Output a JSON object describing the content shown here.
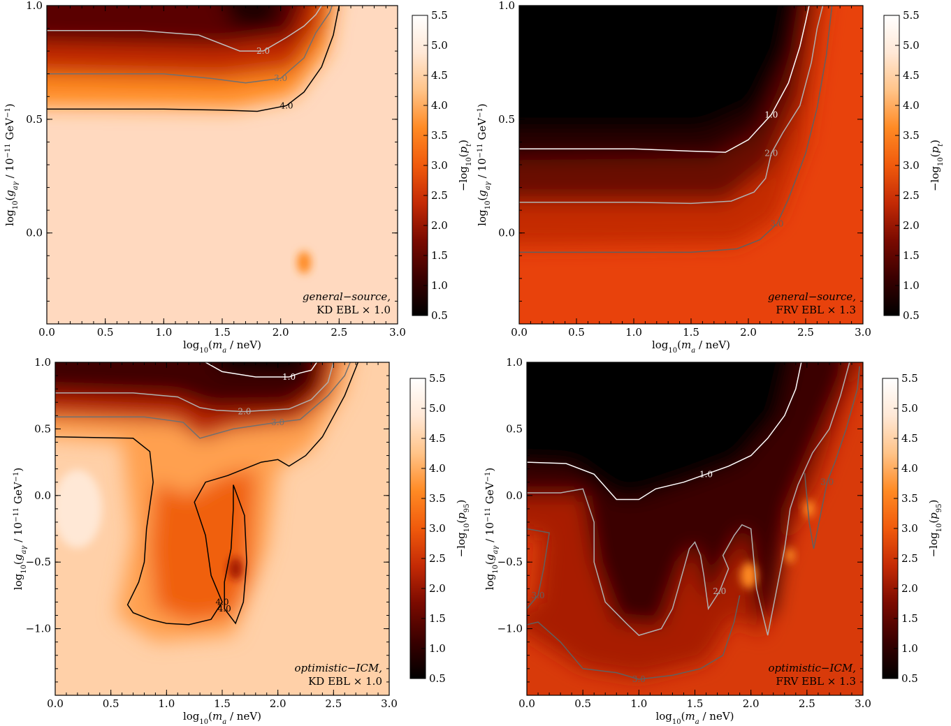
{
  "colormap": {
    "name": "gist_heat",
    "stops": [
      "#000000",
      "#3a0000",
      "#7a0a00",
      "#c42a05",
      "#f05a0c",
      "#ff8a24",
      "#ffc388",
      "#ffe8d6",
      "#ffffff"
    ]
  },
  "chart_data": [
    {
      "type": "heatmap",
      "panel": "top-left",
      "xlabel": "log10(m_a / neV)",
      "ylabel": "log10(g_aγ / 10^-11 GeV^-1)",
      "xlim": [
        0.0,
        3.0
      ],
      "ylim": [
        -0.4,
        1.0
      ],
      "xticks": [
        "0.0",
        "0.5",
        "1.0",
        "1.5",
        "2.0",
        "2.5",
        "3.0"
      ],
      "yticks": [
        "0.0",
        "0.5",
        "1.0"
      ],
      "annotation": [
        "general−source,",
        "KD EBL  × 1.0"
      ],
      "colorbar": {
        "label": "−log10(p_t)",
        "range": [
          0.5,
          5.5
        ],
        "ticks": [
          "0.5",
          "1.0",
          "1.5",
          "2.0",
          "2.5",
          "3.0",
          "3.5",
          "4.0",
          "4.5",
          "5.0",
          "5.5"
        ]
      },
      "contours": [
        {
          "level": "2.0",
          "color": "#c0c0c0",
          "points": [
            [
              0,
              0.89
            ],
            [
              0.8,
              0.89
            ],
            [
              1.3,
              0.87
            ],
            [
              1.65,
              0.8
            ],
            [
              1.85,
              0.8
            ],
            [
              2.05,
              0.86
            ],
            [
              2.2,
              0.91
            ],
            [
              2.3,
              0.96
            ],
            [
              2.35,
              1.0
            ]
          ]
        },
        {
          "level": "3.0",
          "color": "#707070",
          "points": [
            [
              0,
              0.7
            ],
            [
              1.0,
              0.7
            ],
            [
              1.4,
              0.68
            ],
            [
              1.7,
              0.66
            ],
            [
              2.0,
              0.68
            ],
            [
              2.2,
              0.77
            ],
            [
              2.3,
              0.88
            ],
            [
              2.42,
              0.97
            ],
            [
              2.44,
              1.0
            ]
          ]
        },
        {
          "level": "4.0",
          "color": "#000000",
          "points": [
            [
              0,
              0.545
            ],
            [
              1.0,
              0.545
            ],
            [
              1.5,
              0.54
            ],
            [
              1.8,
              0.535
            ],
            [
              2.05,
              0.56
            ],
            [
              2.2,
              0.62
            ],
            [
              2.35,
              0.73
            ],
            [
              2.45,
              0.87
            ],
            [
              2.5,
              1.0
            ]
          ]
        }
      ]
    },
    {
      "type": "heatmap",
      "panel": "top-right",
      "xlabel": "log10(m_a / neV)",
      "ylabel": "log10(g_aγ / 10^-11 GeV^-1)",
      "xlim": [
        0.0,
        3.0
      ],
      "ylim": [
        -0.4,
        1.0
      ],
      "xticks": [
        "0.0",
        "0.5",
        "1.0",
        "1.5",
        "2.0",
        "2.5",
        "3.0"
      ],
      "yticks": [
        "0.0",
        "0.5",
        "1.0"
      ],
      "annotation": [
        "general−source,",
        "FRV EBL  × 1.3"
      ],
      "colorbar": {
        "label": "−log10(p_t)",
        "range": [
          0.5,
          5.5
        ],
        "ticks": [
          "0.5",
          "1.0",
          "1.5",
          "2.0",
          "2.5",
          "3.0",
          "3.5",
          "4.0",
          "4.5",
          "5.0",
          "5.5"
        ]
      },
      "contours": [
        {
          "level": "1.0",
          "color": "#ffffff",
          "points": [
            [
              0,
              0.37
            ],
            [
              1.0,
              0.37
            ],
            [
              1.5,
              0.36
            ],
            [
              1.8,
              0.355
            ],
            [
              2.0,
              0.41
            ],
            [
              2.2,
              0.52
            ],
            [
              2.35,
              0.66
            ],
            [
              2.45,
              0.82
            ],
            [
              2.5,
              0.93
            ],
            [
              2.53,
              1.0
            ]
          ]
        },
        {
          "level": "2.0",
          "color": "#b0b0b0",
          "points": [
            [
              0,
              0.135
            ],
            [
              1.0,
              0.135
            ],
            [
              1.5,
              0.13
            ],
            [
              1.85,
              0.14
            ],
            [
              2.05,
              0.18
            ],
            [
              2.15,
              0.24
            ],
            [
              2.2,
              0.35
            ],
            [
              2.3,
              0.44
            ],
            [
              2.45,
              0.56
            ],
            [
              2.55,
              0.75
            ],
            [
              2.6,
              0.9
            ],
            [
              2.65,
              1.0
            ]
          ]
        },
        {
          "level": "3.0",
          "color": "#606060",
          "points": [
            [
              0,
              -0.085
            ],
            [
              1.0,
              -0.085
            ],
            [
              1.5,
              -0.085
            ],
            [
              1.9,
              -0.07
            ],
            [
              2.1,
              -0.03
            ],
            [
              2.25,
              0.04
            ],
            [
              2.35,
              0.15
            ],
            [
              2.5,
              0.35
            ],
            [
              2.6,
              0.55
            ],
            [
              2.68,
              0.78
            ],
            [
              2.73,
              1.0
            ]
          ]
        }
      ]
    },
    {
      "type": "heatmap",
      "panel": "bottom-left",
      "xlabel": "log10(m_a / neV)",
      "ylabel": "log10(g_aγ / 10^-11 GeV^-1)",
      "xlim": [
        0.0,
        3.0
      ],
      "ylim": [
        -1.5,
        1.0
      ],
      "xticks": [
        "0.0",
        "0.5",
        "1.0",
        "1.5",
        "2.0",
        "2.5",
        "3.0"
      ],
      "yticks": [
        "−1.0",
        "−0.5",
        "0.0",
        "0.5",
        "1.0"
      ],
      "annotation": [
        "optimistic−ICM,",
        "KD EBL  × 1.0"
      ],
      "colorbar": {
        "label": "−log10(p_95)",
        "range": [
          0.5,
          5.5
        ],
        "ticks": [
          "0.5",
          "1.0",
          "1.5",
          "2.0",
          "2.5",
          "3.0",
          "3.5",
          "4.0",
          "4.5",
          "5.0",
          "5.5"
        ]
      },
      "contours": [
        {
          "level": "1.0",
          "color": "#ffffff",
          "points": [
            [
              1.35,
              1.0
            ],
            [
              1.5,
              0.93
            ],
            [
              1.8,
              0.89
            ],
            [
              2.1,
              0.89
            ],
            [
              2.2,
              0.92
            ],
            [
              2.3,
              0.94
            ],
            [
              2.35,
              1.0
            ]
          ]
        },
        {
          "level": "2.0",
          "color": "#b0b0b0",
          "points": [
            [
              0,
              0.77
            ],
            [
              0.7,
              0.77
            ],
            [
              1.1,
              0.74
            ],
            [
              1.3,
              0.66
            ],
            [
              1.45,
              0.64
            ],
            [
              1.7,
              0.63
            ],
            [
              2.1,
              0.65
            ],
            [
              2.3,
              0.72
            ],
            [
              2.45,
              0.85
            ],
            [
              2.5,
              1.0
            ]
          ]
        },
        {
          "level": "3.0",
          "color": "#707070",
          "points": [
            [
              0,
              0.59
            ],
            [
              0.8,
              0.59
            ],
            [
              1.15,
              0.55
            ],
            [
              1.3,
              0.43
            ],
            [
              1.6,
              0.5
            ],
            [
              2.0,
              0.55
            ],
            [
              2.2,
              0.57
            ],
            [
              2.45,
              0.75
            ],
            [
              2.6,
              0.9
            ],
            [
              2.65,
              1.0
            ]
          ]
        },
        {
          "level": "4.0",
          "color": "#000000",
          "points": [
            [
              0,
              0.44
            ],
            [
              0.7,
              0.43
            ],
            [
              0.85,
              0.33
            ],
            [
              0.88,
              0.1
            ],
            [
              0.82,
              -0.25
            ],
            [
              0.8,
              -0.5
            ],
            [
              0.75,
              -0.65
            ],
            [
              0.65,
              -0.82
            ],
            [
              0.7,
              -0.88
            ],
            [
              0.85,
              -0.93
            ],
            [
              1.0,
              -0.96
            ],
            [
              1.2,
              -0.97
            ],
            [
              1.4,
              -0.93
            ],
            [
              1.5,
              -0.8
            ],
            [
              1.4,
              -0.6
            ],
            [
              1.35,
              -0.3
            ],
            [
              1.25,
              -0.05
            ],
            [
              1.35,
              0.1
            ],
            [
              1.55,
              0.15
            ],
            [
              1.85,
              0.25
            ],
            [
              2.0,
              0.27
            ],
            [
              2.1,
              0.22
            ],
            [
              2.25,
              0.3
            ],
            [
              2.4,
              0.44
            ],
            [
              2.6,
              0.75
            ],
            [
              2.72,
              1.0
            ]
          ]
        },
        {
          "level": "4.0",
          "color": "#000000",
          "points": [
            [
              1.6,
              0.08
            ],
            [
              1.7,
              -0.15
            ],
            [
              1.72,
              -0.5
            ],
            [
              1.69,
              -0.8
            ],
            [
              1.62,
              -0.96
            ],
            [
              1.52,
              -0.85
            ],
            [
              1.52,
              -0.65
            ],
            [
              1.58,
              -0.4
            ],
            [
              1.6,
              -0.1
            ],
            [
              1.6,
              0.08
            ]
          ]
        }
      ]
    },
    {
      "type": "heatmap",
      "panel": "bottom-right",
      "xlabel": "log10(m_a / neV)",
      "ylabel": "log10(g_aγ / 10^-11 GeV^-1)",
      "xlim": [
        0.0,
        3.0
      ],
      "ylim": [
        -1.5,
        1.0
      ],
      "xticks": [
        "0.0",
        "0.5",
        "1.0",
        "1.5",
        "2.0",
        "2.5",
        "3.0"
      ],
      "yticks": [
        "−1.0",
        "−0.5",
        "0.0",
        "0.5",
        "1.0"
      ],
      "annotation": [
        "optimistic−ICM,",
        "FRV EBL  × 1.3"
      ],
      "colorbar": {
        "label": "−log10(p_95)",
        "range": [
          0.5,
          5.5
        ],
        "ticks": [
          "0.5",
          "1.0",
          "1.5",
          "2.0",
          "2.5",
          "3.0",
          "3.5",
          "4.0",
          "4.5",
          "5.0",
          "5.5"
        ]
      },
      "contours": [
        {
          "level": "1.0",
          "color": "#ffffff",
          "points": [
            [
              0,
              0.25
            ],
            [
              0.35,
              0.24
            ],
            [
              0.6,
              0.16
            ],
            [
              0.8,
              -0.03
            ],
            [
              1.0,
              -0.03
            ],
            [
              1.15,
              0.05
            ],
            [
              1.4,
              0.1
            ],
            [
              1.6,
              0.16
            ],
            [
              1.8,
              0.22
            ],
            [
              2.0,
              0.3
            ],
            [
              2.15,
              0.43
            ],
            [
              2.3,
              0.6
            ],
            [
              2.4,
              0.8
            ],
            [
              2.45,
              1.0
            ]
          ]
        },
        {
          "level": "2.0",
          "color": "#b0b0b0",
          "points": [
            [
              0,
              0.02
            ],
            [
              0.3,
              0.02
            ],
            [
              0.5,
              0.05
            ],
            [
              0.6,
              -0.2
            ],
            [
              0.6,
              -0.5
            ],
            [
              0.7,
              -0.8
            ],
            [
              0.9,
              -0.97
            ],
            [
              1.0,
              -1.05
            ],
            [
              1.2,
              -1.0
            ],
            [
              1.3,
              -0.85
            ],
            [
              1.35,
              -0.7
            ],
            [
              1.45,
              -0.4
            ],
            [
              1.5,
              -0.35
            ],
            [
              1.55,
              -0.45
            ],
            [
              1.58,
              -0.6
            ],
            [
              1.62,
              -0.85
            ],
            [
              1.72,
              -0.72
            ],
            [
              1.8,
              -0.55
            ],
            [
              1.75,
              -0.45
            ],
            [
              1.85,
              -0.3
            ],
            [
              1.92,
              -0.22
            ],
            [
              2.0,
              -0.25
            ],
            [
              2.05,
              -0.7
            ],
            [
              2.15,
              -1.05
            ],
            [
              2.22,
              -0.75
            ],
            [
              2.3,
              -0.4
            ],
            [
              2.35,
              -0.1
            ],
            [
              2.42,
              0.08
            ],
            [
              2.55,
              0.32
            ],
            [
              2.7,
              0.5
            ],
            [
              2.8,
              0.75
            ],
            [
              2.88,
              1.0
            ]
          ]
        },
        {
          "level": "3.0",
          "color": "#606060",
          "points": [
            [
              0,
              -0.25
            ],
            [
              0.2,
              -0.28
            ],
            [
              0.15,
              -0.55
            ],
            [
              0.1,
              -0.75
            ],
            [
              0.05,
              -0.8
            ],
            [
              0,
              -0.85
            ]
          ]
        },
        {
          "level": "3.0",
          "color": "#606060",
          "points": [
            [
              0,
              -0.97
            ],
            [
              0.1,
              -0.95
            ],
            [
              0.3,
              -1.1
            ],
            [
              0.5,
              -1.3
            ],
            [
              0.8,
              -1.33
            ],
            [
              1.0,
              -1.38
            ],
            [
              1.3,
              -1.35
            ],
            [
              1.55,
              -1.3
            ],
            [
              1.75,
              -1.2
            ],
            [
              1.85,
              -0.95
            ],
            [
              1.9,
              -0.75
            ]
          ]
        },
        {
          "level": "3.0",
          "color": "#606060",
          "points": [
            [
              2.48,
              0.17
            ],
            [
              2.52,
              -0.2
            ],
            [
              2.56,
              -0.4
            ],
            [
              2.62,
              -0.15
            ],
            [
              2.68,
              0.1
            ],
            [
              2.75,
              0.25
            ],
            [
              2.85,
              0.5
            ],
            [
              2.95,
              0.8
            ],
            [
              2.97,
              0.97
            ]
          ]
        }
      ],
      "spot_extra": true
    }
  ]
}
